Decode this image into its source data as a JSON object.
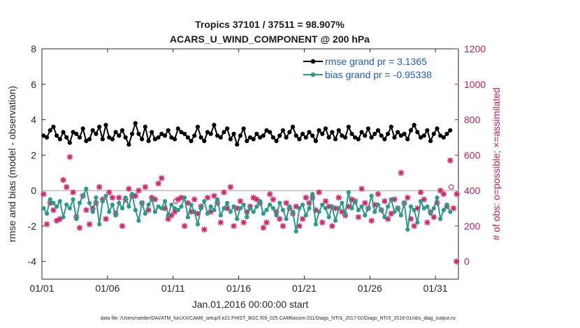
{
  "chart_data": {
    "type": "line",
    "title": "Tropics 37101 / 37511 = 98.907%",
    "subtitle": "ACARS_U_WIND_COMPONENT @ 200 hPa",
    "xlabel": "Jan.01,2016 00:00:00 start",
    "ylabel": "rmse and bias (model - observation)",
    "ylabel_right": "# of obs: o=possible; ×=assimilated",
    "x_tick_labels": [
      "01/01",
      "01/06",
      "01/11",
      "01/16",
      "01/21",
      "01/26",
      "01/31"
    ],
    "x_tick_days": [
      1,
      6,
      11,
      16,
      21,
      26,
      31
    ],
    "xlim": [
      1,
      32.75
    ],
    "ylim": [
      -5,
      8
    ],
    "y_ticks": [
      -4,
      -2,
      0,
      2,
      4,
      6,
      8
    ],
    "ylim_right": [
      -100,
      1200
    ],
    "y_ticks_right": [
      0,
      200,
      400,
      600,
      800,
      1000,
      1200
    ],
    "zero_line": 0,
    "footnote": "data file: /Users/raeder/DAI/ATM_forcXX/CAM6_setup/f.e21.FHIST_BGC.f09_025.CAM6assim.011/Diags_NTrS_2017-02/Diags_NTrS_2016-01/obs_diag_output.nc",
    "series": [
      {
        "name": "rmse grand pr = 3.1365",
        "color": "#000000",
        "axis": "left",
        "values": [
          3.1,
          3.0,
          3.4,
          3.6,
          3.1,
          2.9,
          3.3,
          3.0,
          2.7,
          3.3,
          3.2,
          3.0,
          3.5,
          2.8,
          2.9,
          3.4,
          3.2,
          3.6,
          2.9,
          3.7,
          3.0,
          2.9,
          3.3,
          3.1,
          3.4,
          3.0,
          2.6,
          3.2,
          3.8,
          3.2,
          2.9,
          3.6,
          2.8,
          3.3,
          2.9,
          3.0,
          3.2,
          3.1,
          3.4,
          3.0,
          2.9,
          3.5,
          3.3,
          3.2,
          3.0,
          2.8,
          3.1,
          3.6,
          3.0,
          2.8,
          3.3,
          3.2,
          3.7,
          3.1,
          3.0,
          3.3,
          3.5,
          2.9,
          3.2,
          2.6,
          3.1,
          3.5,
          2.8,
          3.0,
          2.9,
          3.2,
          3.0,
          3.1,
          3.4,
          3.3,
          3.0,
          2.8,
          3.1,
          3.4,
          3.0,
          3.3,
          3.6,
          3.1,
          2.9,
          3.2,
          3.0,
          3.3,
          3.1,
          2.8,
          3.4,
          3.2,
          3.5,
          3.0,
          3.3,
          2.9,
          3.4,
          3.1,
          3.0,
          3.6,
          3.2,
          3.0,
          2.9,
          3.3,
          3.1,
          3.5,
          3.0,
          3.2,
          3.4,
          3.1,
          2.9,
          3.2,
          3.6,
          3.0,
          3.3,
          3.1,
          3.2,
          2.9,
          3.4,
          3.7,
          3.3,
          3.0,
          3.1,
          3.4,
          2.8,
          3.2,
          3.5,
          3.1,
          3.0,
          3.2,
          3.4,
          3.1,
          3.8,
          3.3
        ],
        "values_shape_note": "two analysis times per day"
      },
      {
        "name": "bias grand pr = -0.95338",
        "color": "#2a9a8a",
        "axis": "left",
        "values": [
          -1.0,
          -1.3,
          -0.5,
          -0.7,
          -0.9,
          -0.6,
          -1.5,
          -0.8,
          -1.0,
          -0.5,
          -1.6,
          -0.7,
          -0.3,
          0.1,
          -0.7,
          -1.2,
          -0.4,
          -1.9,
          -0.6,
          -0.3,
          -1.2,
          -0.8,
          -1.4,
          -0.7,
          -1.0,
          -0.4,
          -0.9,
          -0.2,
          -1.1,
          -1.7,
          -0.7,
          -1.3,
          -0.8,
          -0.5,
          -1.2,
          -0.9,
          -1.0,
          -0.6,
          -1.4,
          -0.8,
          -1.0,
          -1.1,
          -0.9,
          -0.4,
          -1.5,
          -0.8,
          -1.2,
          -1.9,
          -1.0,
          -0.6,
          -1.3,
          -0.9,
          -1.1,
          -0.5,
          -1.4,
          -1.0,
          -0.7,
          -1.2,
          -0.9,
          -1.6,
          -1.0,
          -0.8,
          -1.5,
          -1.0,
          -1.2,
          -0.9,
          -0.6,
          -1.3,
          -1.1,
          -0.8,
          -1.0,
          -1.4,
          -0.7,
          -1.1,
          -1.6,
          -0.9,
          -1.2,
          -2.3,
          -1.0,
          -0.8,
          -1.4,
          -1.0,
          -0.2,
          -1.9,
          -1.2,
          -0.8,
          -1.0,
          -1.5,
          -0.9,
          -1.7,
          -1.0,
          -0.7,
          -1.3,
          -0.1,
          -1.0,
          -0.6,
          -1.1,
          -0.9,
          -1.4,
          -1.0,
          -0.3,
          -1.2,
          -0.8,
          -1.1,
          -1.5,
          -0.9,
          -0.5,
          -1.2,
          -1.0,
          -1.4,
          -0.7,
          -2.2,
          -0.9,
          -1.1,
          -1.8,
          -0.6,
          -1.0,
          -0.9,
          -1.3,
          -1.0,
          -0.4,
          -1.6,
          -1.1,
          -0.8,
          -1.2,
          -0.9,
          -0.3,
          -1.5
        ],
        "values_shape_note": "two analysis times per day"
      },
      {
        "name": "# of obs assimilated",
        "color": "#d6246a",
        "axis": "right",
        "marker": "x",
        "values": [
          380,
          210,
          330,
          290,
          230,
          240,
          460,
          420,
          590,
          390,
          250,
          190,
          370,
          290,
          210,
          300,
          330,
          420,
          350,
          240,
          390,
          360,
          270,
          360,
          200,
          350,
          410,
          370,
          370,
          400,
          330,
          420,
          290,
          360,
          350,
          440,
          470,
          300,
          240,
          260,
          280,
          350,
          360,
          200,
          330,
          280,
          350,
          270,
          310,
          180,
          360,
          280,
          370,
          330,
          220,
          390,
          300,
          420,
          200,
          300,
          340,
          220,
          280,
          310,
          360,
          350,
          330,
          190,
          220,
          380,
          350,
          280,
          240,
          200,
          330,
          300,
          270,
          310,
          200,
          240,
          360,
          330,
          360,
          290,
          390,
          220,
          340,
          310,
          200,
          300,
          360,
          280,
          260,
          310,
          350,
          340,
          250,
          410,
          330,
          300,
          230,
          320,
          380,
          290,
          340,
          240,
          270,
          350,
          300,
          500,
          330,
          360,
          240,
          200,
          300,
          390,
          350,
          220,
          280,
          250,
          330,
          400,
          380,
          310,
          570,
          300,
          380,
          190
        ]
      },
      {
        "name": "# of obs possible",
        "color": "#d6246a",
        "axis": "right",
        "marker": "o",
        "values": [
          380,
          210,
          330,
          290,
          230,
          240,
          460,
          420,
          590,
          390,
          250,
          190,
          370,
          290,
          210,
          300,
          330,
          420,
          350,
          240,
          390,
          360,
          270,
          360,
          200,
          350,
          410,
          370,
          370,
          400,
          330,
          420,
          290,
          360,
          350,
          440,
          470,
          300,
          240,
          260,
          280,
          350,
          360,
          200,
          330,
          280,
          350,
          270,
          310,
          180,
          360,
          280,
          370,
          330,
          220,
          390,
          300,
          420,
          200,
          300,
          340,
          220,
          280,
          310,
          360,
          350,
          330,
          190,
          220,
          380,
          350,
          280,
          240,
          200,
          330,
          300,
          270,
          310,
          200,
          240,
          360,
          330,
          360,
          290,
          390,
          220,
          340,
          310,
          200,
          300,
          360,
          280,
          260,
          310,
          350,
          340,
          250,
          410,
          330,
          300,
          230,
          320,
          380,
          290,
          340,
          240,
          270,
          350,
          300,
          500,
          330,
          360,
          240,
          200,
          300,
          390,
          350,
          220,
          280,
          250,
          330,
          400,
          380,
          310,
          570,
          300,
          380,
          190
        ]
      }
    ],
    "extra_points_right": [
      {
        "day": 11.2,
        "value": 340,
        "marker": "o"
      },
      {
        "day": 32.2,
        "value": 420,
        "marker": "o"
      },
      {
        "day": 32.6,
        "value": 0,
        "marker": "x"
      }
    ],
    "legend_position": "top-right"
  }
}
